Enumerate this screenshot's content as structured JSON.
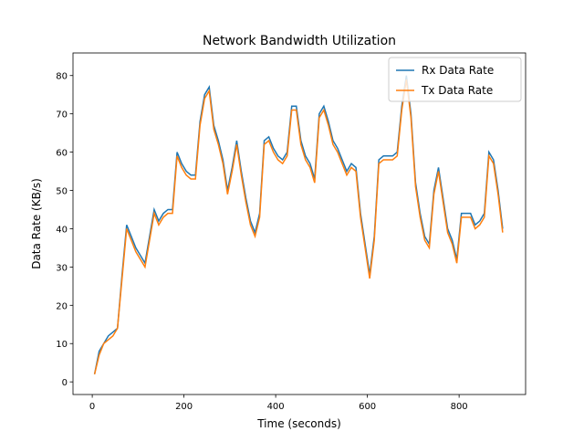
{
  "chart_data": {
    "type": "line",
    "title": "Network Bandwidth Utilization",
    "xlabel": "Time (seconds)",
    "ylabel": "Data Rate (KB/s)",
    "x": [
      5,
      15,
      25,
      35,
      45,
      55,
      65,
      75,
      85,
      95,
      105,
      115,
      125,
      135,
      145,
      155,
      165,
      175,
      185,
      195,
      205,
      215,
      225,
      235,
      245,
      255,
      265,
      275,
      285,
      295,
      305,
      315,
      325,
      335,
      345,
      355,
      365,
      375,
      385,
      395,
      405,
      415,
      425,
      435,
      445,
      455,
      465,
      475,
      485,
      495,
      505,
      515,
      525,
      535,
      545,
      555,
      565,
      575,
      585,
      595,
      605,
      615,
      625,
      635,
      645,
      655,
      665,
      675,
      685,
      695,
      705,
      715,
      725,
      735,
      745,
      755,
      765,
      775,
      785,
      795,
      805,
      815,
      825,
      835,
      845,
      855,
      865,
      875,
      885,
      895
    ],
    "series": [
      {
        "name": "Rx Data Rate",
        "color": "#1f77b4",
        "values": [
          2,
          8,
          10,
          12,
          13,
          14,
          28,
          41,
          38,
          35,
          33,
          31,
          38,
          45,
          42,
          44,
          45,
          45,
          60,
          57,
          55,
          54,
          54,
          68,
          75,
          77,
          67,
          63,
          58,
          50,
          56,
          63,
          55,
          48,
          42,
          39,
          44,
          63,
          64,
          61,
          59,
          58,
          60,
          72,
          72,
          63,
          59,
          57,
          53,
          70,
          72,
          68,
          63,
          61,
          58,
          55,
          57,
          56,
          44,
          36,
          28,
          38,
          58,
          59,
          59,
          59,
          60,
          72,
          80,
          70,
          52,
          44,
          38,
          36,
          50,
          56,
          48,
          40,
          37,
          32,
          44,
          44,
          44,
          41,
          42,
          44,
          60,
          58,
          50,
          40
        ]
      },
      {
        "name": "Tx Data Rate",
        "color": "#ff7f0e",
        "values": [
          2,
          7,
          10,
          11,
          12,
          14,
          27,
          40,
          37,
          34,
          32,
          30,
          37,
          44,
          41,
          43,
          44,
          44,
          59,
          56,
          54,
          53,
          53,
          67,
          74,
          76,
          66,
          62,
          57,
          49,
          55,
          62,
          54,
          47,
          41,
          38,
          43,
          62,
          63,
          60,
          58,
          57,
          59,
          71,
          71,
          62,
          58,
          56,
          52,
          69,
          71,
          67,
          62,
          60,
          57,
          54,
          56,
          55,
          43,
          35,
          27,
          37,
          57,
          58,
          58,
          58,
          59,
          71,
          79,
          69,
          51,
          43,
          37,
          35,
          49,
          55,
          47,
          39,
          36,
          31,
          43,
          43,
          43,
          40,
          41,
          43,
          59,
          57,
          49,
          39
        ]
      }
    ],
    "xlim": [
      -42,
      945
    ],
    "ylim": [
      -3.3,
      85.9
    ],
    "xticks": [
      0,
      200,
      400,
      600,
      800
    ],
    "yticks": [
      0,
      10,
      20,
      30,
      40,
      50,
      60,
      70,
      80
    ],
    "legend": "upper right"
  }
}
